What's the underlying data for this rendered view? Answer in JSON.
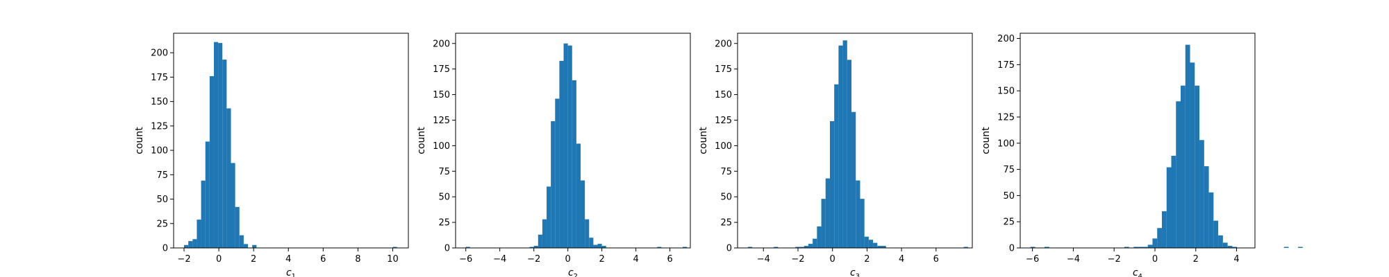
{
  "chart_data": [
    {
      "type": "bar",
      "subtype": "histogram",
      "xlabel_main": "c",
      "xlabel_sub": "1",
      "ylabel": "count",
      "xlim": [
        -2.6,
        10.9
      ],
      "ylim": [
        0,
        220
      ],
      "xticks": [
        -2,
        0,
        2,
        4,
        6,
        8,
        10
      ],
      "yticks": [
        0,
        25,
        50,
        75,
        100,
        125,
        150,
        175,
        200
      ],
      "bin_start": -2.0,
      "bin_width": 0.245,
      "values": [
        3,
        7,
        9,
        29,
        69,
        109,
        176,
        211,
        210,
        193,
        143,
        87,
        42,
        13,
        4,
        0,
        3,
        0,
        0,
        0,
        0,
        0,
        0,
        0,
        0,
        0,
        0,
        0,
        0,
        0,
        0,
        0,
        0,
        0,
        0,
        0,
        0,
        0,
        0,
        0,
        0,
        0,
        0,
        0,
        0,
        0,
        0,
        0,
        0,
        1
      ],
      "color": "#1f77b4"
    },
    {
      "type": "bar",
      "subtype": "histogram",
      "xlabel_main": "c",
      "xlabel_sub": "2",
      "ylabel": "count",
      "xlim": [
        -6.6,
        7.2
      ],
      "ylim": [
        0,
        210
      ],
      "xticks": [
        -6,
        -4,
        -2,
        0,
        2,
        4,
        6
      ],
      "yticks": [
        0,
        25,
        50,
        75,
        100,
        125,
        150,
        175,
        200
      ],
      "bin_start": -6.0,
      "bin_width": 0.25,
      "values": [
        1,
        0,
        0,
        0,
        0,
        0,
        0,
        0,
        0,
        0,
        0,
        0,
        0,
        0,
        0,
        1,
        2,
        13,
        28,
        60,
        124,
        146,
        183,
        200,
        198,
        164,
        102,
        66,
        28,
        10,
        3,
        4,
        2,
        0,
        0,
        0,
        0,
        0,
        0,
        0,
        0,
        0,
        0,
        0,
        0,
        1,
        0,
        0,
        0,
        0,
        0,
        1
      ],
      "color": "#1f77b4"
    },
    {
      "type": "bar",
      "subtype": "histogram",
      "xlabel_main": "c",
      "xlabel_sub": "3",
      "ylabel": "count",
      "xlim": [
        -5.5,
        8.1
      ],
      "ylim": [
        0,
        210
      ],
      "xticks": [
        -4,
        -2,
        0,
        2,
        4,
        6
      ],
      "yticks": [
        0,
        25,
        50,
        75,
        100,
        125,
        150,
        175,
        200
      ],
      "bin_start": -4.9,
      "bin_width": 0.25,
      "values": [
        1,
        0,
        0,
        0,
        0,
        0,
        1,
        0,
        0,
        0,
        0,
        1,
        1,
        2,
        4,
        9,
        21,
        48,
        68,
        124,
        160,
        198,
        203,
        184,
        133,
        66,
        48,
        11,
        8,
        5,
        2,
        2,
        0,
        0,
        0,
        0,
        0,
        0,
        0,
        0,
        0,
        0,
        0,
        0,
        0,
        0,
        0,
        0,
        0,
        0,
        1
      ],
      "color": "#1f77b4"
    },
    {
      "type": "bar",
      "subtype": "histogram",
      "xlabel_main": "c",
      "xlabel_sub": "4",
      "ylabel": "count",
      "xlim": [
        -6.6,
        4.9
      ],
      "ylim": [
        0,
        205
      ],
      "xticks": [
        -6,
        -4,
        -2,
        0,
        2,
        4
      ],
      "yticks": [
        0,
        25,
        50,
        75,
        100,
        125,
        150,
        175,
        200
      ],
      "bin_start": -6.1,
      "bin_width": 0.23,
      "values": [
        1,
        0,
        0,
        1,
        0,
        0,
        0,
        0,
        0,
        0,
        0,
        0,
        0,
        0,
        0,
        0,
        0,
        0,
        0,
        0,
        1,
        0,
        1,
        1,
        1,
        3,
        9,
        19,
        35,
        77,
        88,
        140,
        155,
        194,
        177,
        155,
        103,
        78,
        53,
        26,
        12,
        5,
        2,
        1,
        0,
        0,
        0,
        0,
        0,
        0,
        0,
        0,
        0,
        0,
        1,
        0,
        0,
        1
      ],
      "color": "#1f77b4"
    }
  ]
}
